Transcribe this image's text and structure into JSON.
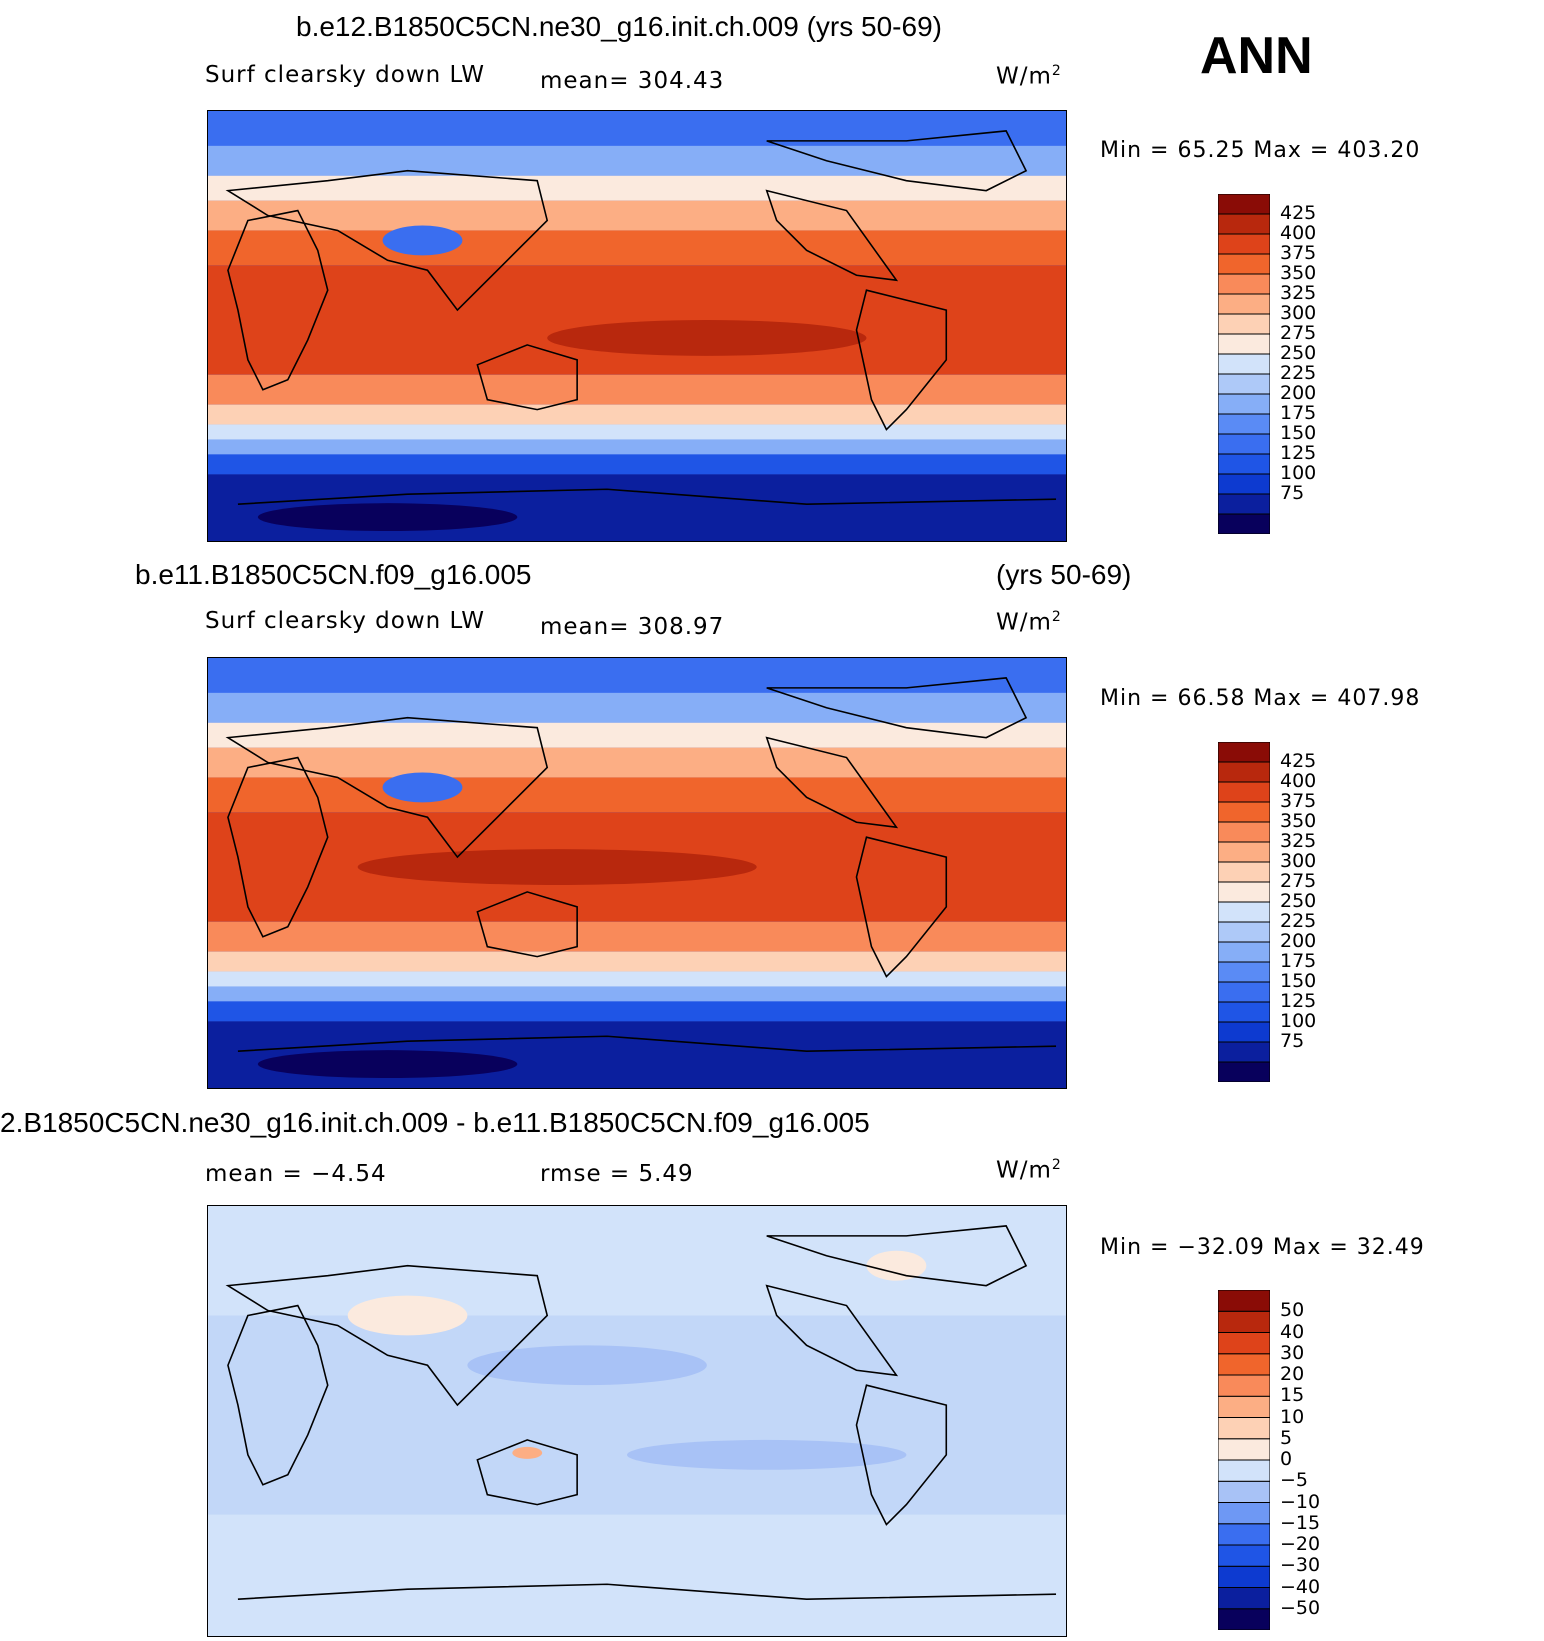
{
  "season": "ANN",
  "colors": {
    "abs": [
      "#08005c",
      "#0b1f9e",
      "#0d3ad0",
      "#1f55e6",
      "#3a6ef0",
      "#5a8bf5",
      "#86aef7",
      "#aec9f8",
      "#d2e3fa",
      "#fbeade",
      "#fdd1b5",
      "#fcae84",
      "#f98a5a",
      "#f0652c",
      "#de431a",
      "#b8280d",
      "#8a0c06"
    ],
    "diff": [
      "#08005c",
      "#0b1f9e",
      "#0d3ad0",
      "#1f55e6",
      "#3a6ef0",
      "#6e98f4",
      "#a8c2f6",
      "#d2e3fa",
      "#fbeade",
      "#fdd1b5",
      "#fcae84",
      "#f98a5a",
      "#f0652c",
      "#de431a",
      "#b8280d",
      "#8a0c06"
    ]
  },
  "panels": [
    {
      "title": "b.e12.B1850C5CN.ne30_g16.init.ch.009 (yrs 50-69)",
      "title_right": "",
      "variable": "Surf clearsky down LW",
      "mean_text": "mean= 304.43",
      "rmse_text": "",
      "units": "W/m",
      "units_sup": "2",
      "minmax": "Min =   65.25  Max  =  403.20",
      "ticks": [
        "425",
        "400",
        "375",
        "350",
        "325",
        "300",
        "275",
        "250",
        "225",
        "200",
        "175",
        "150",
        "125",
        "100",
        "75"
      ]
    },
    {
      "title": "b.e11.B1850C5CN.f09_g16.005",
      "title_right": "(yrs 50-69)",
      "variable": "Surf clearsky down LW",
      "mean_text": "mean= 308.97",
      "rmse_text": "",
      "units": "W/m",
      "units_sup": "2",
      "minmax": "Min =   66.58  Max  =  407.98",
      "ticks": [
        "425",
        "400",
        "375",
        "350",
        "325",
        "300",
        "275",
        "250",
        "225",
        "200",
        "175",
        "150",
        "125",
        "100",
        "75"
      ]
    },
    {
      "title": "2.B1850C5CN.ne30_g16.init.ch.009 - b.e11.B1850C5CN.f09_g16.005",
      "title_right": "",
      "variable": "mean =    −4.54",
      "mean_text": "rmse =     5.49",
      "rmse_text": "",
      "units": "W/m",
      "units_sup": "2",
      "minmax": "Min = −32.09  Max  =    32.49",
      "ticks": [
        "50",
        "40",
        "30",
        "20",
        "15",
        "10",
        "5",
        "0",
        "−5",
        "−10",
        "−15",
        "−20",
        "−30",
        "−40",
        "−50"
      ]
    }
  ]
}
